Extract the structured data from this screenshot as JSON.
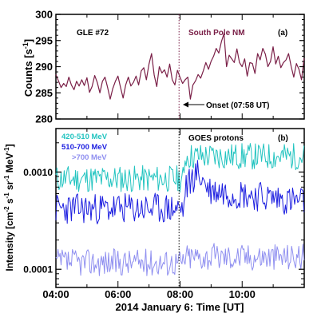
{
  "chart_data": [
    {
      "type": "line",
      "panel_label": "(a)",
      "ylabel": "Counts [s",
      "ylabel_exp": "-1",
      "ylabel_close": "]",
      "ylim": [
        280,
        300
      ],
      "yticks": [
        280,
        285,
        290,
        295,
        300
      ],
      "xlim_hours": [
        4,
        12
      ],
      "annotations": {
        "event": "GLE #72",
        "station": "South Pole NM",
        "onset": "Onset (07:58 UT)"
      },
      "onset_hour": 7.967,
      "series": [
        {
          "name": "South Pole NM",
          "color": "#7a1f47",
          "t_start": 4.0,
          "t_step": 0.0833,
          "values": [
            288.5,
            287.3,
            286.0,
            286.8,
            286.2,
            288.0,
            286.5,
            285.6,
            287.2,
            286.3,
            287.5,
            286.4,
            287.9,
            285.1,
            286.2,
            288.3,
            287.0,
            285.0,
            287.2,
            288.0,
            286.0,
            283.8,
            285.8,
            287.2,
            288.2,
            286.0,
            284.0,
            286.5,
            288.0,
            286.3,
            287.0,
            288.2,
            286.5,
            289.2,
            289.8,
            287.5,
            290.5,
            292.5,
            288.4,
            286.2,
            290.0,
            288.8,
            289.4,
            288.0,
            290.5,
            287.5,
            286.5,
            289.3,
            288.0,
            286.8,
            287.5,
            288.0,
            283.8,
            286.5,
            287.3,
            288.5,
            287.8,
            289.2,
            290.8,
            289.5,
            291.0,
            292.0,
            293.5,
            292.6,
            294.8,
            296.3,
            290.0,
            292.2,
            291.5,
            290.8,
            293.4,
            290.8,
            290.0,
            291.5,
            288.2,
            290.8,
            290.6,
            288.7,
            292.5,
            291.3,
            293.5,
            292.4,
            290.0,
            291.0,
            293.8,
            290.5,
            292.0,
            289.8,
            290.8,
            291.3,
            292.5,
            290.0,
            288.0,
            290.6,
            289.5,
            287.5,
            291.6
          ]
        }
      ]
    },
    {
      "type": "line",
      "panel_label": "(b)",
      "title": "GOES protons",
      "ylabel": "Intensity [cm",
      "ylabel_units": [
        {
          "base": "Intensity [cm",
          "exp": "-2"
        },
        {
          "base": " s",
          "exp": "-1"
        },
        {
          "base": " sr",
          "exp": "-1"
        },
        {
          "base": " MeV",
          "exp": "-1"
        },
        {
          "base": "]",
          "exp": ""
        }
      ],
      "yscale": "log",
      "ylim": [
        6.5e-05,
        0.0028
      ],
      "yticks": [
        0.0001,
        0.001
      ],
      "ytick_labels": [
        "0.0001",
        "0.0010"
      ],
      "xlabel": "2014 January 6: Time [UT]",
      "xlim_hours": [
        4,
        12
      ],
      "xticks": [
        "04:00",
        "06:00",
        "08:00",
        "10:00"
      ],
      "xtick_hours": [
        4,
        6,
        8,
        10
      ],
      "onset_hour": 7.967,
      "series": [
        {
          "name": "420-510 MeV",
          "color": "#22c4c0",
          "t_start": 4.0,
          "t_step": 0.0333,
          "base_before": 0.00085,
          "base_after": 0.00145,
          "jump_hour": 8.15,
          "noise": 0.14,
          "seed": 11
        },
        {
          "name": "510-700 MeV",
          "color": "#1c1ee0",
          "t_start": 4.0,
          "t_step": 0.0333,
          "base_before": 0.00042,
          "base_after": 0.00065,
          "peak": 0.00098,
          "jump_hour": 8.15,
          "noise": 0.16,
          "seed": 23
        },
        {
          "name": ">700 MeV",
          "color": "#8f8ff0",
          "t_start": 4.0,
          "t_step": 0.0333,
          "base_before": 0.000118,
          "base_after": 0.000135,
          "jump_hour": 8.15,
          "noise": 0.14,
          "seed": 37
        }
      ]
    }
  ]
}
